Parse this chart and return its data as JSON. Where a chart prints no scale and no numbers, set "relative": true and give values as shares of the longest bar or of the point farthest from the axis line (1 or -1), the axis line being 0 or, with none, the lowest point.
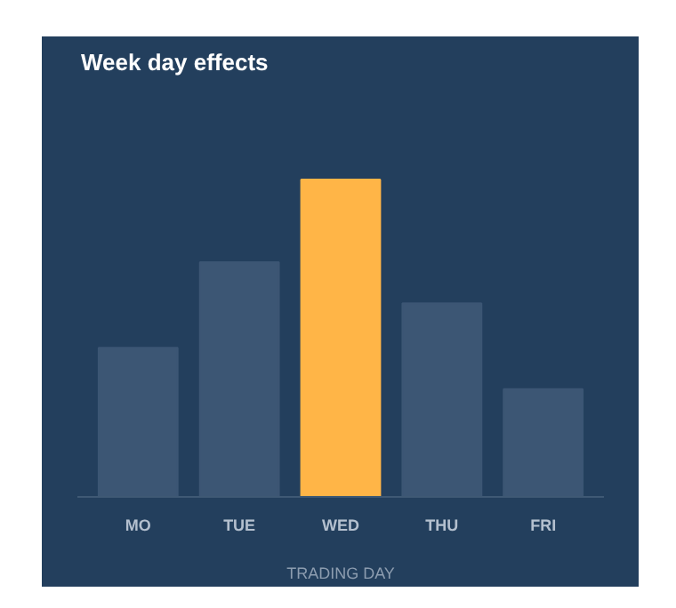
{
  "chart_data": {
    "type": "bar",
    "title": "Week day effects",
    "xlabel": "TRADING DAY",
    "categories": [
      "MO",
      "TUE",
      "WED",
      "THU",
      "FRI"
    ],
    "values": [
      0.47,
      0.74,
      1,
      0.61,
      0.34
    ],
    "colors": [
      "#3c5674",
      "#3c5674",
      "#ffb547",
      "#3c5674",
      "#3c5674"
    ],
    "relative": true,
    "grid": false,
    "tick_labels": "x"
  }
}
